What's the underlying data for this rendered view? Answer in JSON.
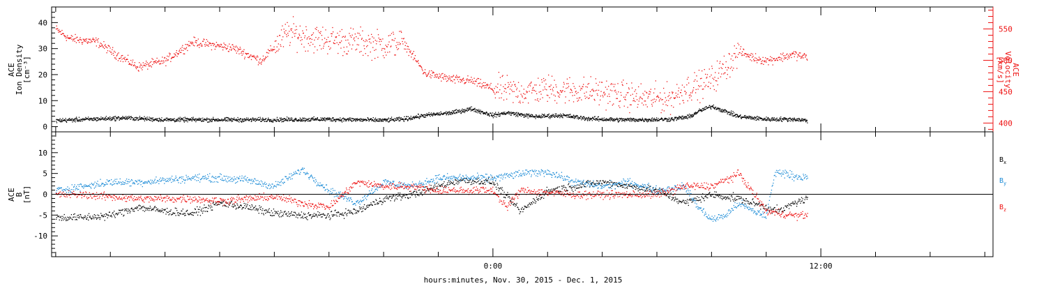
{
  "chart_data": [
    {
      "type": "scatter",
      "panel": "plasma",
      "ylabel_lines": [
        "ACE",
        "Ion Density",
        "[cm⁻³]"
      ],
      "y2label_lines": [
        "ACE",
        "Velocity",
        "[km/s]"
      ],
      "ylim": [
        -2,
        46
      ],
      "y2lim": [
        386,
        585
      ],
      "yticks": [
        0,
        10,
        20,
        30,
        40
      ],
      "y2ticks": [
        400,
        450,
        500,
        550
      ],
      "colors": {
        "density": "#000000",
        "velocity": "#ee1111"
      },
      "density_profile": {
        "x": [
          -16,
          -13.5,
          -12,
          -10,
          -8,
          -6,
          -4,
          -3.3,
          -2.5,
          -1.5,
          -0.8,
          0,
          0.5,
          1.5,
          2.5,
          3.5,
          4.5,
          5.5,
          6.5,
          7.2,
          7.5,
          8,
          8.5,
          9,
          10,
          11,
          11.5
        ],
        "y": [
          2.5,
          3.5,
          2.8,
          2.8,
          2.8,
          3,
          2.6,
          3,
          4.5,
          5.5,
          7,
          4.5,
          5.5,
          4,
          4.5,
          3.2,
          2.8,
          2.8,
          3,
          4,
          6,
          8,
          6,
          4,
          3,
          3,
          2.5
        ]
      },
      "velocity_profile": {
        "x": [
          -16,
          -15.5,
          -14.5,
          -13.8,
          -13,
          -12,
          -11,
          -9.5,
          -8.5,
          -7.5,
          -6.5,
          -5,
          -4,
          -3.3,
          -2.5,
          -2,
          -1.5,
          -0.8,
          0,
          1,
          2,
          4,
          5.5,
          6.5,
          7,
          7.5,
          8,
          8.5,
          9,
          9.5,
          10,
          11,
          11.5
        ],
        "y": [
          550,
          535,
          530,
          510,
          490,
          500,
          530,
          520,
          500,
          545,
          535,
          530,
          525,
          530,
          480,
          475,
          470,
          468,
          455,
          450,
          455,
          450,
          440,
          440,
          455,
          460,
          470,
          490,
          515,
          505,
          500,
          510,
          505
        ]
      }
    },
    {
      "type": "scatter",
      "panel": "imf",
      "ylabel_lines": [
        "ACE",
        "B",
        "[nT]"
      ],
      "ylim": [
        -15,
        15
      ],
      "yticks": [
        -10,
        -5,
        0,
        5,
        10
      ],
      "series": [
        {
          "name": "Bx",
          "color": "#000000",
          "x": [
            -16,
            -15,
            -14,
            -13,
            -12,
            -11,
            -10,
            -9,
            -8,
            -7,
            -6,
            -5,
            -4,
            -3,
            -2,
            -1.2,
            0,
            1,
            2,
            3,
            4,
            5,
            6,
            7,
            8,
            9,
            10,
            10.5,
            11,
            11.5
          ],
          "y": [
            -5.5,
            -5.5,
            -5,
            -3,
            -4,
            -4.5,
            -2,
            -3,
            -4.5,
            -5,
            -5,
            -4,
            -1,
            0,
            2,
            3.5,
            3,
            -4,
            1,
            2,
            3,
            2,
            1,
            -2,
            0,
            -1,
            -3,
            -4,
            -2,
            -1
          ]
        },
        {
          "name": "By",
          "color": "#1a8ad6",
          "x": [
            -16,
            -15,
            -14,
            -13,
            -12,
            -11,
            -10,
            -9,
            -8,
            -7,
            -6,
            -5,
            -4,
            -3,
            -2,
            -1,
            0,
            1,
            2,
            3,
            4,
            5,
            6,
            7,
            7.5,
            8,
            8.5,
            9,
            9.5,
            10,
            10.3,
            10.5,
            11,
            11.5
          ],
          "y": [
            1,
            2,
            3,
            3,
            3.5,
            4,
            4,
            3.5,
            2,
            6,
            1,
            -2,
            3,
            2,
            4,
            4,
            4,
            5,
            5.5,
            3,
            2,
            3,
            1,
            2,
            -3,
            -6,
            -5,
            -2,
            -4,
            -5,
            5,
            5.5,
            4.5,
            4
          ]
        },
        {
          "name": "Bz",
          "color": "#ee1111",
          "x": [
            -16,
            -15,
            -14,
            -13,
            -12,
            -11,
            -10,
            -9,
            -8,
            -7,
            -6,
            -5,
            -4,
            -3,
            -2,
            -1,
            0,
            0.5,
            1,
            2,
            3,
            4,
            5,
            6,
            7,
            8,
            9,
            10,
            11,
            11.5
          ],
          "y": [
            0,
            0,
            -0.5,
            -1,
            -1,
            -1,
            -1.5,
            -1,
            -0.5,
            -2,
            -3,
            3,
            2,
            2,
            1,
            1,
            1,
            -3,
            1,
            0.5,
            0,
            0,
            0,
            0,
            2,
            2,
            5,
            -4,
            -5,
            -5
          ]
        }
      ]
    }
  ],
  "xaxis": {
    "label": "hours:minutes, Nov. 30, 2015 - Dec.  1, 2015",
    "xlim": [
      -16.15,
      18.3
    ],
    "major_ticks": [
      0,
      12
    ],
    "major_tick_labels": [
      "0:00",
      "12:00"
    ],
    "minor_step_hours": 2
  },
  "legend": {
    "entries": [
      {
        "base": "B",
        "sub": "x",
        "color": "#000000"
      },
      {
        "base": "B",
        "sub": "y",
        "color": "#1a8ad6"
      },
      {
        "base": "B",
        "sub": "z",
        "color": "#ee1111"
      }
    ]
  }
}
